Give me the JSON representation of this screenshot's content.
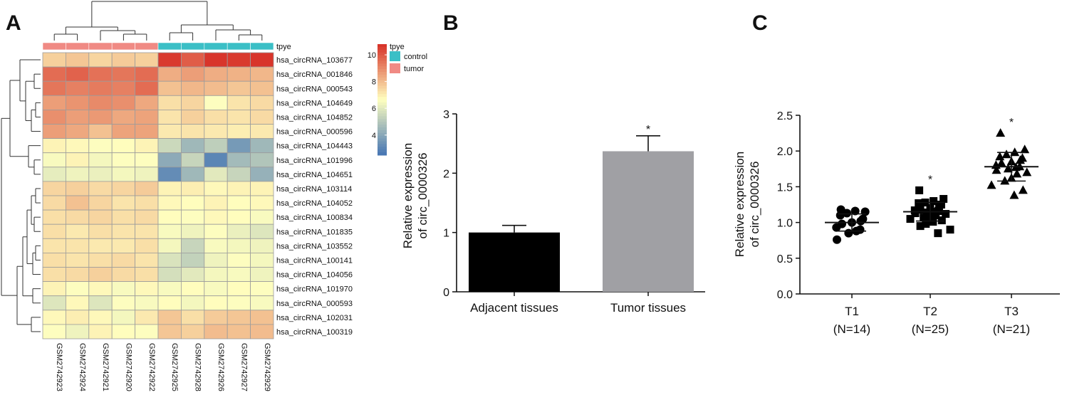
{
  "panels": {
    "a": "A",
    "b": "B",
    "c": "C"
  },
  "colors": {
    "control": "#3BBFC6",
    "tumor": "#F08A84",
    "bar_adjacent": "#000000",
    "bar_tumor": "#A0A0A4",
    "heat_low": "#4575B4",
    "heat_mid": "#FFFFBF",
    "heat_high": "#D73027"
  },
  "chart_data": [
    {
      "type": "heatmap",
      "annotation_label": "tpye",
      "legend_title": "tpye",
      "legend_groups": [
        "control",
        "tumor"
      ],
      "colorbar_ticks": [
        10,
        8,
        6,
        4
      ],
      "colorbar_range": [
        2.5,
        10.8
      ],
      "samples": [
        "GSM2742923",
        "GSM2742924",
        "GSM2742921",
        "GSM2742920",
        "GSM2742922",
        "GSM2742925",
        "GSM2742928",
        "GSM2742926",
        "GSM2742927",
        "GSM2742929"
      ],
      "sample_groups": [
        "tumor",
        "tumor",
        "tumor",
        "tumor",
        "tumor",
        "control",
        "control",
        "control",
        "control",
        "control"
      ],
      "genes": [
        "hsa_circRNA_103677",
        "hsa_circRNA_001846",
        "hsa_circRNA_000543",
        "hsa_circRNA_104649",
        "hsa_circRNA_104852",
        "hsa_circRNA_000596",
        "hsa_circRNA_104443",
        "hsa_circRNA_101996",
        "hsa_circRNA_104651",
        "hsa_circRNA_103114",
        "hsa_circRNA_104052",
        "hsa_circRNA_100834",
        "hsa_circRNA_101835",
        "hsa_circRNA_103552",
        "hsa_circRNA_100141",
        "hsa_circRNA_104056",
        "hsa_circRNA_101970",
        "hsa_circRNA_000593",
        "hsa_circRNA_102031",
        "hsa_circRNA_100319"
      ],
      "values": [
        [
          7.6,
          7.8,
          7.5,
          7.7,
          7.6,
          10.6,
          9.9,
          10.7,
          10.6,
          10.7
        ],
        [
          9.6,
          9.8,
          9.5,
          9.4,
          9.6,
          8.3,
          8.6,
          8.3,
          8.2,
          8.1
        ],
        [
          9.4,
          9.2,
          9.3,
          9.2,
          9.6,
          7.9,
          8.1,
          8.0,
          7.8,
          7.9
        ],
        [
          8.6,
          8.8,
          9.0,
          8.9,
          8.4,
          7.3,
          7.5,
          6.6,
          7.2,
          7.4
        ],
        [
          8.9,
          8.6,
          8.7,
          8.4,
          8.5,
          7.2,
          7.6,
          7.3,
          7.2,
          7.4
        ],
        [
          8.6,
          8.4,
          7.9,
          8.5,
          8.5,
          7.1,
          7.2,
          7.1,
          7.0,
          7.1
        ],
        [
          6.9,
          6.8,
          6.6,
          6.7,
          6.9,
          5.5,
          4.5,
          5.2,
          3.6,
          4.5
        ],
        [
          6.5,
          6.9,
          6.4,
          6.6,
          6.6,
          4.1,
          5.4,
          3.0,
          4.6,
          4.9
        ],
        [
          6.1,
          6.3,
          6.2,
          6.4,
          6.3,
          3.2,
          4.5,
          6.0,
          5.4,
          4.3
        ],
        [
          7.5,
          7.6,
          7.4,
          7.5,
          7.7,
          6.9,
          7.0,
          6.8,
          6.9,
          6.9
        ],
        [
          7.4,
          7.9,
          7.5,
          7.2,
          7.3,
          6.8,
          6.7,
          6.9,
          6.7,
          6.8
        ],
        [
          7.3,
          7.4,
          7.5,
          7.3,
          7.4,
          6.7,
          6.6,
          6.8,
          6.7,
          6.5
        ],
        [
          7.3,
          7.1,
          7.3,
          7.2,
          7.2,
          6.5,
          6.3,
          6.6,
          6.2,
          5.9
        ],
        [
          7.2,
          7.2,
          7.1,
          7.1,
          7.3,
          6.4,
          5.4,
          6.5,
          6.4,
          6.3
        ],
        [
          7.3,
          7.2,
          7.3,
          7.4,
          7.2,
          5.8,
          5.3,
          6.3,
          6.6,
          6.4
        ],
        [
          7.3,
          7.4,
          7.6,
          7.4,
          7.3,
          5.7,
          6.0,
          6.4,
          6.5,
          6.3
        ],
        [
          6.9,
          6.6,
          6.8,
          6.5,
          6.8,
          6.5,
          6.7,
          6.5,
          6.7,
          6.6
        ],
        [
          5.9,
          6.8,
          5.9,
          6.6,
          6.5,
          6.7,
          6.4,
          6.7,
          6.6,
          6.5
        ],
        [
          6.8,
          7.0,
          6.8,
          6.4,
          7.1,
          7.8,
          7.3,
          7.7,
          7.8,
          7.9
        ],
        [
          6.6,
          6.3,
          6.9,
          6.7,
          6.6,
          7.8,
          7.6,
          8.0,
          7.9,
          8.0
        ]
      ]
    },
    {
      "type": "bar",
      "categories": [
        "Adjacent tissues",
        "Tumor tissues"
      ],
      "values": [
        1.0,
        2.37
      ],
      "errors": [
        0.12,
        0.26
      ],
      "annotations": [
        "",
        "*"
      ],
      "ylabel": "Relative expression\nof circ_0000326",
      "ylim": [
        0,
        3
      ],
      "yticks": [
        0,
        1,
        2,
        3
      ]
    },
    {
      "type": "scatter",
      "categories": [
        "T1",
        "T2",
        "T3"
      ],
      "category_sublabels": [
        "(N=14)",
        "(N=25)",
        "(N=21)"
      ],
      "markers": [
        "circle",
        "square",
        "triangle"
      ],
      "means": [
        1.0,
        1.15,
        1.78
      ],
      "sd": [
        0.12,
        0.13,
        0.2
      ],
      "annotations": [
        "",
        "*",
        "*"
      ],
      "ylabel": "Relative expression\nof circ_0000326",
      "ylim": [
        0,
        2.5
      ],
      "yticks": [
        "0.0",
        "0.5",
        "1.0",
        "1.5",
        "2.0",
        "2.5"
      ],
      "points": [
        [
          1.18,
          1.15,
          1.16,
          1.13,
          1.1,
          1.05,
          1.02,
          1.0,
          0.98,
          0.93,
          0.9,
          0.88,
          0.85,
          0.76
        ],
        [
          1.45,
          1.33,
          1.3,
          1.28,
          1.27,
          1.25,
          1.23,
          1.2,
          1.18,
          1.17,
          1.16,
          1.15,
          1.14,
          1.13,
          1.12,
          1.1,
          1.08,
          1.07,
          1.05,
          1.03,
          1.01,
          0.98,
          0.95,
          0.9,
          0.85
        ],
        [
          2.25,
          2.02,
          1.98,
          1.95,
          1.92,
          1.9,
          1.87,
          1.85,
          1.83,
          1.8,
          1.78,
          1.77,
          1.75,
          1.73,
          1.7,
          1.68,
          1.62,
          1.58,
          1.52,
          1.45,
          1.38
        ]
      ]
    }
  ]
}
